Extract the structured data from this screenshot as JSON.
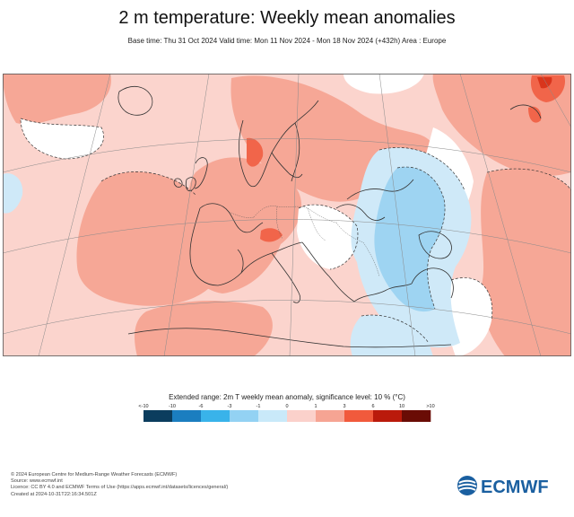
{
  "title": "2 m temperature: Weekly mean anomalies",
  "subtitle": "Base time: Thu 31 Oct 2024 Valid time: Mon 11 Nov 2024 - Mon 18 Nov 2024 (+432h) Area : Europe",
  "legend": {
    "title": "Extended range: 2m T weekly mean anomaly, significance level: 10 % (°C)",
    "labels": [
      "<-10",
      "-10",
      "-6",
      "-3",
      "-1",
      "0",
      "1",
      "3",
      "6",
      "10",
      ">10"
    ],
    "colors": [
      "#0b3d5e",
      "#1b7ec0",
      "#39b3ea",
      "#93d2f3",
      "#c9e9f9",
      "#fbd1cb",
      "#f6a493",
      "#f15a3c",
      "#ba1a0b",
      "#6a0c05"
    ]
  },
  "map": {
    "area": "Europe",
    "colors": {
      "ocean_light_warm": "#fbd4cd",
      "warm": "#f6a796",
      "warm_strong": "#f1654a",
      "warm_stronger": "#d9351c",
      "neutral": "#ffffff",
      "cool_light": "#cfe9f8",
      "cool": "#9ed4f2"
    }
  },
  "footer": {
    "lines": [
      "© 2024 European Centre for Medium-Range Weather Forecasts (ECMWF)",
      "Source: www.ecmwf.int",
      "Licence: CC BY 4.0 and ECMWF Terms of Use (https://apps.ecmwf.int/datasets/licences/general/)",
      "Created at 2024-10-31T22:16:34.501Z"
    ]
  },
  "logo": {
    "text": "ECMWF",
    "color": "#1a5fa0"
  }
}
